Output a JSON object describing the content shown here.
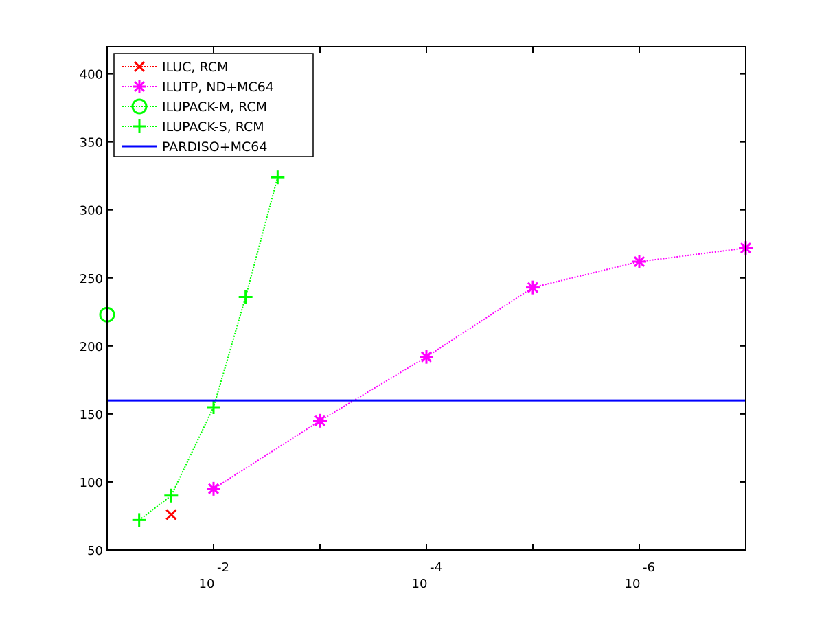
{
  "chart_data": {
    "type": "line",
    "title": "",
    "xlabel": "",
    "ylabel": "",
    "xscale": "log",
    "x_direction": "decreasing",
    "xlim": [
      0.1,
      1e-07
    ],
    "ylim": [
      50,
      420
    ],
    "yticks": [
      50,
      100,
      150,
      200,
      250,
      300,
      350,
      400
    ],
    "xticks": [
      {
        "value": 0.01,
        "base": "10",
        "exponent": "-2"
      },
      {
        "value": 0.0001,
        "base": "10",
        "exponent": "-4"
      },
      {
        "value": 1e-06,
        "base": "10",
        "exponent": "-6"
      }
    ],
    "grid": false,
    "legend_position": "top-left",
    "series": [
      {
        "name": "ILUC, RCM",
        "color": "#ff0000",
        "marker": "x",
        "line": "dotted",
        "x": [
          0.025
        ],
        "y": [
          76
        ]
      },
      {
        "name": "ILUTP,  ND+MC64",
        "color": "#ff00ff",
        "marker": "asterisk",
        "line": "dotted",
        "x": [
          0.01,
          0.001,
          0.0001,
          1e-05,
          1e-06,
          1e-07
        ],
        "y": [
          95,
          145,
          192,
          243,
          262,
          272
        ]
      },
      {
        "name": "ILUPACK-M, RCM",
        "color": "#00ff00",
        "marker": "circle",
        "line": "dotted",
        "x": [
          0.1
        ],
        "y": [
          223
        ]
      },
      {
        "name": "ILUPACK-S, RCM",
        "color": "#00ff00",
        "marker": "plus",
        "line": "dotted",
        "x": [
          0.05,
          0.025,
          0.01,
          0.005,
          0.0025
        ],
        "y": [
          72,
          90,
          155,
          236,
          324
        ]
      },
      {
        "name": "PARDISO+MC64",
        "color": "#0000ff",
        "marker": "none",
        "line": "solid",
        "x": [
          0.1,
          1e-07
        ],
        "y": [
          160,
          160
        ]
      }
    ]
  }
}
